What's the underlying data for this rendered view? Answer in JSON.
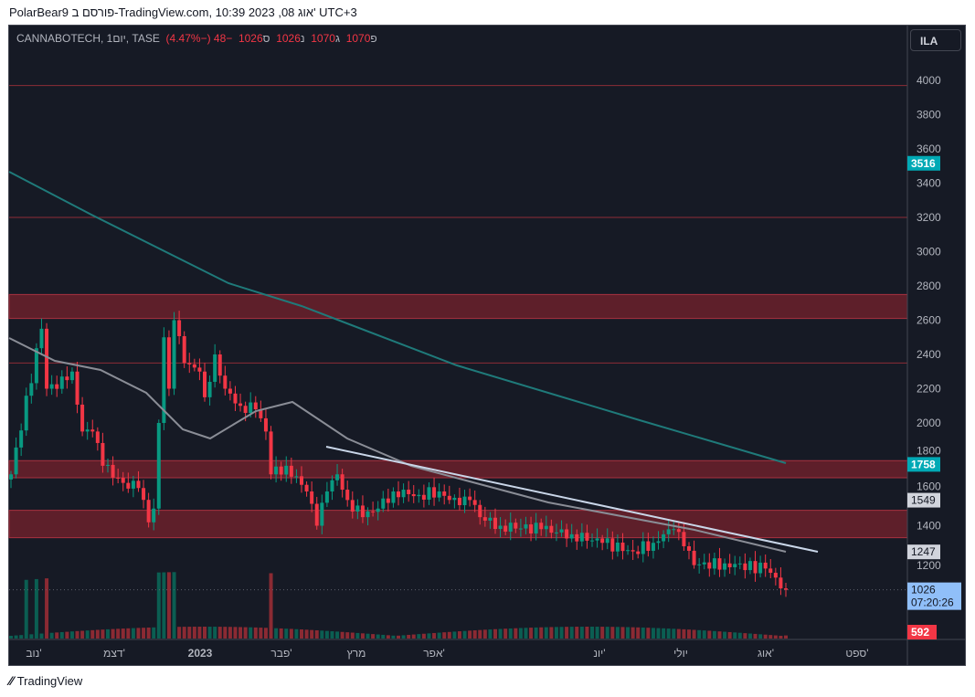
{
  "header": {
    "published": "PolarBear9 פורסם ב-TradingView.com, 10:39 2023 ,08 אוג' UTC+3"
  },
  "legend": {
    "symbol": "CANNABOTECH, 1יום, TASE",
    "open_label": "פ",
    "open": "1070",
    "high_label": "ג",
    "high": "1070",
    "low_label": "נ",
    "low": "1026",
    "close_label": "ס",
    "close": "1026",
    "change": "−48 (−4.47%)"
  },
  "currency_button": "ILA",
  "price_axis": {
    "ticks": [
      4000,
      3800,
      3600,
      3400,
      3200,
      3000,
      2800,
      2600,
      2400,
      2200,
      2000,
      1800,
      1600,
      1400,
      1200
    ]
  },
  "badges": [
    {
      "value": "3516",
      "price": 3516,
      "color": "#00a9b5",
      "text": "#ffffff"
    },
    {
      "value": "1758",
      "price": 1758,
      "color": "#00a9b5",
      "text": "#ffffff"
    },
    {
      "value": "1549",
      "price": 1549,
      "color": "#d1d4dc",
      "text": "#131722"
    },
    {
      "value": "1247",
      "price": 1247,
      "color": "#d1d4dc",
      "text": "#131722"
    }
  ],
  "last_price": {
    "value": "1026",
    "countdown": "07:20:26",
    "price": 1026,
    "color": "#90bff9"
  },
  "volume_badge": {
    "value": "592",
    "color": "#f23645"
  },
  "time_axis": [
    "נוב'",
    "דצמ'",
    "2023",
    "פבר'",
    "מרץ",
    "אפר'",
    "יונ'",
    "יולי",
    "אוג'",
    "ספט'"
  ],
  "chart_data": {
    "type": "candlestick",
    "hlines": [
      3970,
      3200,
      2350
    ],
    "zones": [
      [
        2610,
        2750
      ],
      [
        1680,
        1780
      ],
      [
        1330,
        1490
      ]
    ],
    "keypoints": [
      [
        0,
        1700
      ],
      [
        6,
        2550
      ],
      [
        7,
        2200
      ],
      [
        11,
        2250
      ],
      [
        12,
        2300
      ],
      [
        14,
        1950
      ],
      [
        16,
        1950
      ],
      [
        18,
        1750
      ],
      [
        22,
        1650
      ],
      [
        25,
        1620
      ],
      [
        27,
        1420
      ],
      [
        28,
        1500
      ],
      [
        29,
        2000
      ],
      [
        30,
        2500
      ],
      [
        31,
        2200
      ],
      [
        32,
        2600
      ],
      [
        34,
        2350
      ],
      [
        37,
        2300
      ],
      [
        38,
        2150
      ],
      [
        40,
        2400
      ],
      [
        42,
        2200
      ],
      [
        45,
        2100
      ],
      [
        48,
        2080
      ],
      [
        50,
        1950
      ],
      [
        51,
        1700
      ],
      [
        54,
        1750
      ],
      [
        58,
        1600
      ],
      [
        60,
        1400
      ],
      [
        62,
        1600
      ],
      [
        64,
        1700
      ],
      [
        66,
        1550
      ],
      [
        69,
        1450
      ],
      [
        72,
        1500
      ],
      [
        75,
        1600
      ],
      [
        80,
        1580
      ],
      [
        84,
        1600
      ],
      [
        88,
        1520
      ],
      [
        90,
        1550
      ],
      [
        92,
        1450
      ],
      [
        96,
        1400
      ],
      [
        104,
        1380
      ],
      [
        110,
        1350
      ],
      [
        116,
        1300
      ],
      [
        122,
        1250
      ],
      [
        126,
        1300
      ],
      [
        128,
        1350
      ],
      [
        130,
        1380
      ],
      [
        132,
        1280
      ],
      [
        134,
        1170
      ],
      [
        140,
        1180
      ],
      [
        148,
        1150
      ],
      [
        152,
        1026
      ]
    ],
    "colors": {
      "up": "#089981",
      "down": "#f23645",
      "ma_long": "#1f7a7a",
      "ma_short": "#8a8d96",
      "trendline": "#c9d6e8"
    }
  },
  "footer": {
    "brand": "TradingView"
  }
}
